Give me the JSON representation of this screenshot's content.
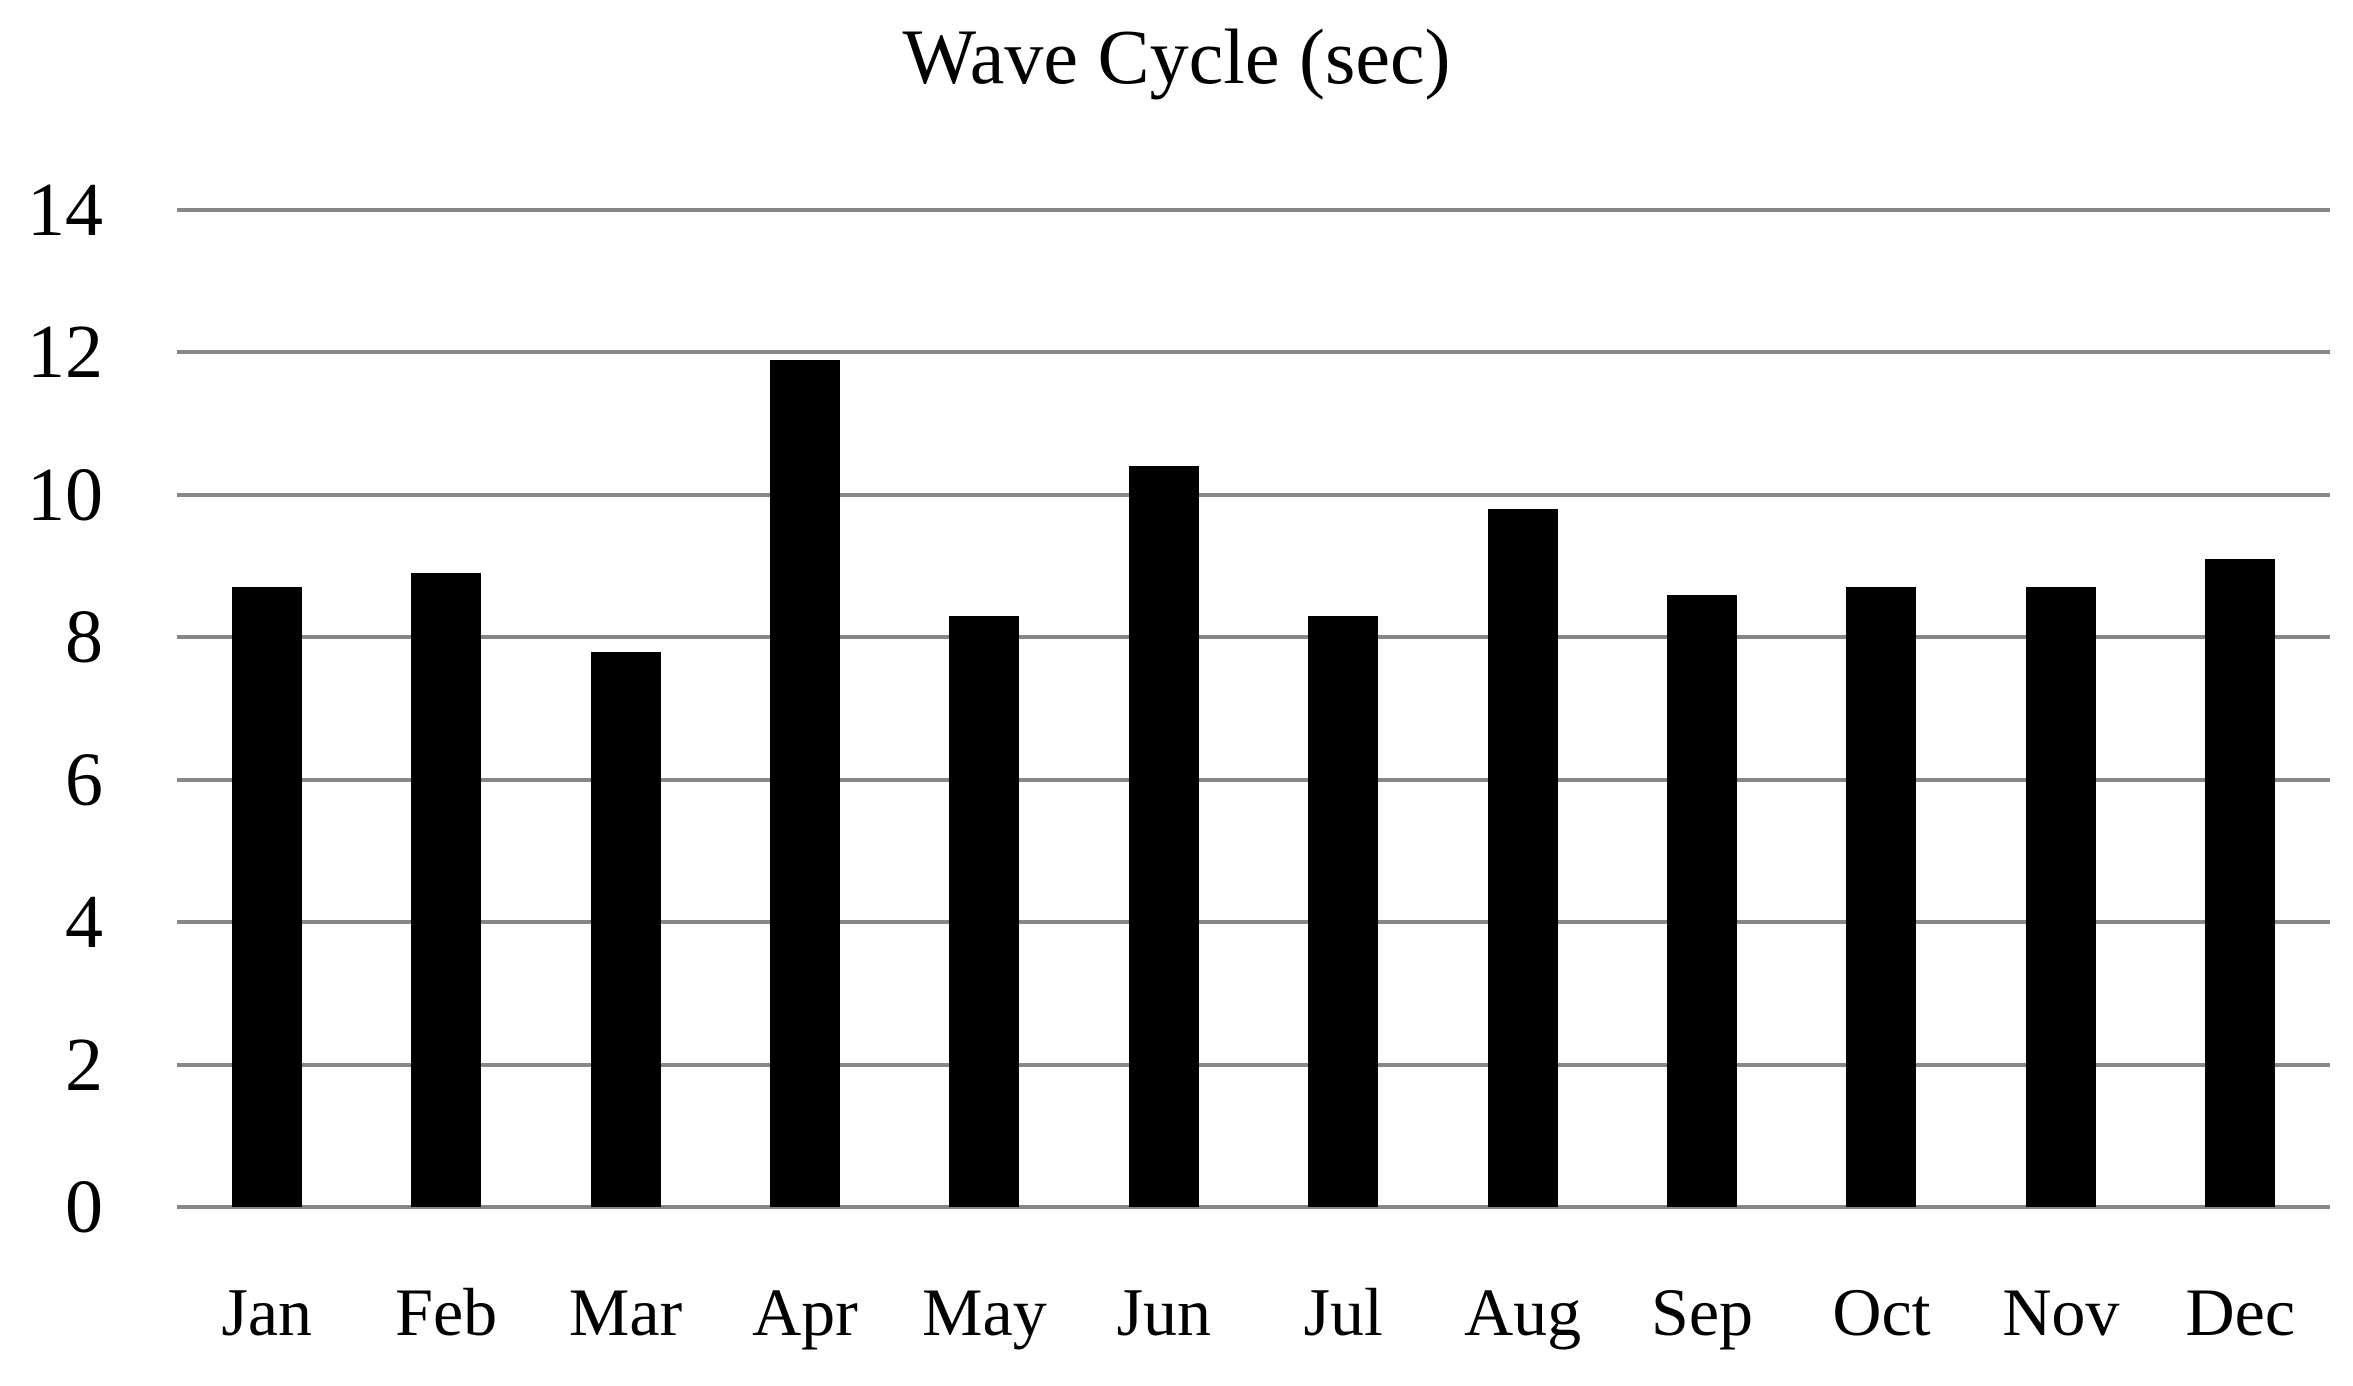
{
  "chart_data": {
    "type": "bar",
    "title": "Wave Cycle (sec)",
    "categories": [
      "Jan",
      "Feb",
      "Mar",
      "Apr",
      "May",
      "Jun",
      "Jul",
      "Aug",
      "Sep",
      "Oct",
      "Nov",
      "Dec"
    ],
    "values": [
      8.7,
      8.9,
      7.8,
      11.9,
      8.3,
      10.4,
      8.3,
      9.8,
      8.6,
      8.7,
      8.7,
      9.1
    ],
    "xlabel": "",
    "ylabel": "",
    "ylim": [
      0,
      14
    ],
    "y_ticks": [
      0,
      2,
      4,
      6,
      8,
      10,
      12,
      14
    ],
    "y_tick_labels": [
      "0",
      "2",
      "4",
      "6",
      "8",
      "10",
      "12",
      "14"
    ],
    "grid": true,
    "legend": false,
    "bar_color": "#000000",
    "gridline_color": "#878787",
    "text_color": "#000000",
    "background_color": "#ffffff"
  }
}
